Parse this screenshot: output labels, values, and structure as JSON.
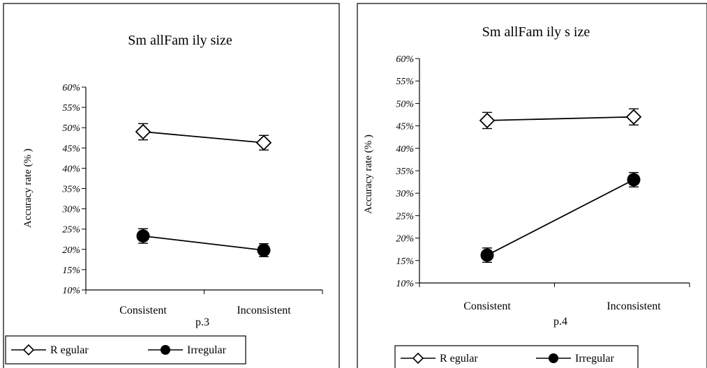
{
  "chart_data": [
    {
      "type": "line",
      "title": "Sm allFam ily size",
      "ylabel": "Accuracy rate (% )",
      "caption": "p.3",
      "categories": [
        "Consistent",
        "Inconsistent"
      ],
      "yticks": [
        "10%",
        "15%",
        "20%",
        "25%",
        "30%",
        "35%",
        "40%",
        "45%",
        "50%",
        "55%",
        "60%"
      ],
      "ylim": [
        10,
        60
      ],
      "series": [
        {
          "name": "R egular",
          "marker": "diamond-open",
          "values": [
            49,
            46.3
          ],
          "errors": [
            2,
            1.8
          ]
        },
        {
          "name": "Irregular",
          "marker": "circle-filled",
          "values": [
            23.3,
            19.8
          ],
          "errors": [
            1.8,
            1.6
          ]
        }
      ],
      "legend": "bottom-left",
      "grid": false
    },
    {
      "type": "line",
      "title": "Sm allFam ily s ize",
      "ylabel": "Accuracy rate (% )",
      "caption": "p.4",
      "categories": [
        "Consistent",
        "Inconsistent"
      ],
      "yticks": [
        "10%",
        "15%",
        "20%",
        "25%",
        "30%",
        "35%",
        "40%",
        "45%",
        "50%",
        "55%",
        "60%"
      ],
      "ylim": [
        10,
        60
      ],
      "series": [
        {
          "name": "R egular",
          "marker": "diamond-open",
          "values": [
            46.2,
            47
          ],
          "errors": [
            1.8,
            1.8
          ]
        },
        {
          "name": "Irregular",
          "marker": "circle-filled",
          "values": [
            16.2,
            33
          ],
          "errors": [
            1.6,
            1.6
          ]
        }
      ],
      "legend": "bottom-left",
      "grid": false
    }
  ]
}
